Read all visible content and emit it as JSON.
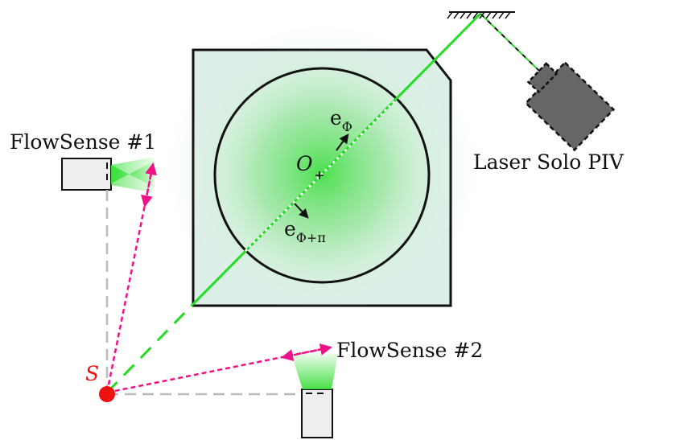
{
  "labels": {
    "camera1": "FlowSense #1",
    "camera2": "FlowSense #2",
    "laser": "Laser Solo PIV",
    "center": "O",
    "source": "S",
    "e_main": "e",
    "e_phi_sub": "Φ",
    "e_phi_pi_sub": "Φ+π"
  },
  "colors": {
    "laser_green": "#22dd22",
    "tank_fill": "#dcefe7",
    "glow": "#33dd33",
    "ray_pink": "#ee1188",
    "source_red": "#ee1111",
    "camera_fill": "#eeeeee",
    "laser_body": "#666666",
    "guide_gray": "#bbbbbb",
    "outline": "#111111"
  },
  "icons": {
    "center_marker": "plus-icon",
    "mirror": "hatched-mirror-icon",
    "laser": "laser-device-icon",
    "camera": "camera-box-icon"
  }
}
